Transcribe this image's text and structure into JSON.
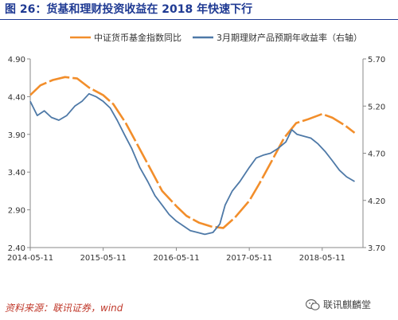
{
  "title": "图 26：货基和理财投资收益在 2018 年快速下行",
  "source": "资料来源：联讯证券，wind",
  "watermark": "联讯麒麟堂",
  "colors": {
    "series1": "#f28e2b",
    "series2": "#4e79a7",
    "axis": "#888888",
    "title": "#1f3a93"
  },
  "chart_data": {
    "type": "line",
    "title": "",
    "xlabel": "",
    "ylabel": "",
    "x_ticks": [
      "2014-05-11",
      "2015-05-11",
      "2016-05-11",
      "2017-05-11",
      "2018-05-11"
    ],
    "ylim_left": [
      2.4,
      4.9
    ],
    "yticks_left": [
      "4.90",
      "4.40",
      "3.90",
      "3.40",
      "2.90",
      "2.40"
    ],
    "ylim_right": [
      3.7,
      5.7
    ],
    "yticks_right": [
      "5.70",
      "5.20",
      "4.70",
      "4.20",
      "3.70"
    ],
    "legend_position": "top",
    "series": [
      {
        "name": "中证货币基金指数同比",
        "axis": "left",
        "style": "dashed",
        "points": [
          [
            "2014-05-11",
            4.42
          ],
          [
            "2014-07-01",
            4.55
          ],
          [
            "2014-09-01",
            4.62
          ],
          [
            "2014-11-01",
            4.66
          ],
          [
            "2015-01-01",
            4.64
          ],
          [
            "2015-03-01",
            4.52
          ],
          [
            "2015-05-11",
            4.42
          ],
          [
            "2015-07-01",
            4.3
          ],
          [
            "2015-09-01",
            4.05
          ],
          [
            "2015-11-01",
            3.75
          ],
          [
            "2016-01-01",
            3.45
          ],
          [
            "2016-03-01",
            3.15
          ],
          [
            "2016-05-11",
            2.95
          ],
          [
            "2016-07-01",
            2.82
          ],
          [
            "2016-09-01",
            2.73
          ],
          [
            "2016-11-01",
            2.68
          ],
          [
            "2017-01-01",
            2.66
          ],
          [
            "2017-03-01",
            2.8
          ],
          [
            "2017-05-11",
            3.02
          ],
          [
            "2017-07-01",
            3.25
          ],
          [
            "2017-09-01",
            3.55
          ],
          [
            "2017-11-01",
            3.85
          ],
          [
            "2018-01-01",
            4.05
          ],
          [
            "2018-03-01",
            4.1
          ],
          [
            "2018-05-11",
            4.17
          ],
          [
            "2018-07-01",
            4.12
          ],
          [
            "2018-09-01",
            4.02
          ],
          [
            "2018-10-20",
            3.92
          ]
        ]
      },
      {
        "name": "3月期理财产品预期年收益率（右轴）",
        "axis": "right",
        "style": "solid",
        "points": [
          [
            "2014-05-11",
            5.25
          ],
          [
            "2014-06-15",
            5.1
          ],
          [
            "2014-07-20",
            5.15
          ],
          [
            "2014-08-25",
            5.08
          ],
          [
            "2014-10-01",
            5.05
          ],
          [
            "2014-11-10",
            5.1
          ],
          [
            "2014-12-20",
            5.2
          ],
          [
            "2015-01-25",
            5.25
          ],
          [
            "2015-03-01",
            5.33
          ],
          [
            "2015-04-05",
            5.3
          ],
          [
            "2015-05-11",
            5.25
          ],
          [
            "2015-06-15",
            5.18
          ],
          [
            "2015-07-20",
            5.05
          ],
          [
            "2015-08-25",
            4.9
          ],
          [
            "2015-10-01",
            4.75
          ],
          [
            "2015-11-10",
            4.55
          ],
          [
            "2015-12-20",
            4.4
          ],
          [
            "2016-01-25",
            4.25
          ],
          [
            "2016-03-01",
            4.15
          ],
          [
            "2016-04-05",
            4.05
          ],
          [
            "2016-05-11",
            3.98
          ],
          [
            "2016-06-15",
            3.93
          ],
          [
            "2016-07-20",
            3.88
          ],
          [
            "2016-08-25",
            3.86
          ],
          [
            "2016-10-01",
            3.84
          ],
          [
            "2016-11-10",
            3.86
          ],
          [
            "2016-12-15",
            3.95
          ],
          [
            "2017-01-10",
            4.15
          ],
          [
            "2017-02-15",
            4.3
          ],
          [
            "2017-03-25",
            4.4
          ],
          [
            "2017-05-11",
            4.55
          ],
          [
            "2017-06-15",
            4.65
          ],
          [
            "2017-07-20",
            4.68
          ],
          [
            "2017-08-25",
            4.7
          ],
          [
            "2017-10-01",
            4.75
          ],
          [
            "2017-11-10",
            4.82
          ],
          [
            "2017-12-10",
            4.95
          ],
          [
            "2018-01-05",
            4.9
          ],
          [
            "2018-02-10",
            4.88
          ],
          [
            "2018-03-15",
            4.86
          ],
          [
            "2018-04-20",
            4.8
          ],
          [
            "2018-05-25",
            4.72
          ],
          [
            "2018-07-01",
            4.62
          ],
          [
            "2018-08-05",
            4.52
          ],
          [
            "2018-09-10",
            4.45
          ],
          [
            "2018-10-20",
            4.4
          ]
        ]
      }
    ]
  }
}
